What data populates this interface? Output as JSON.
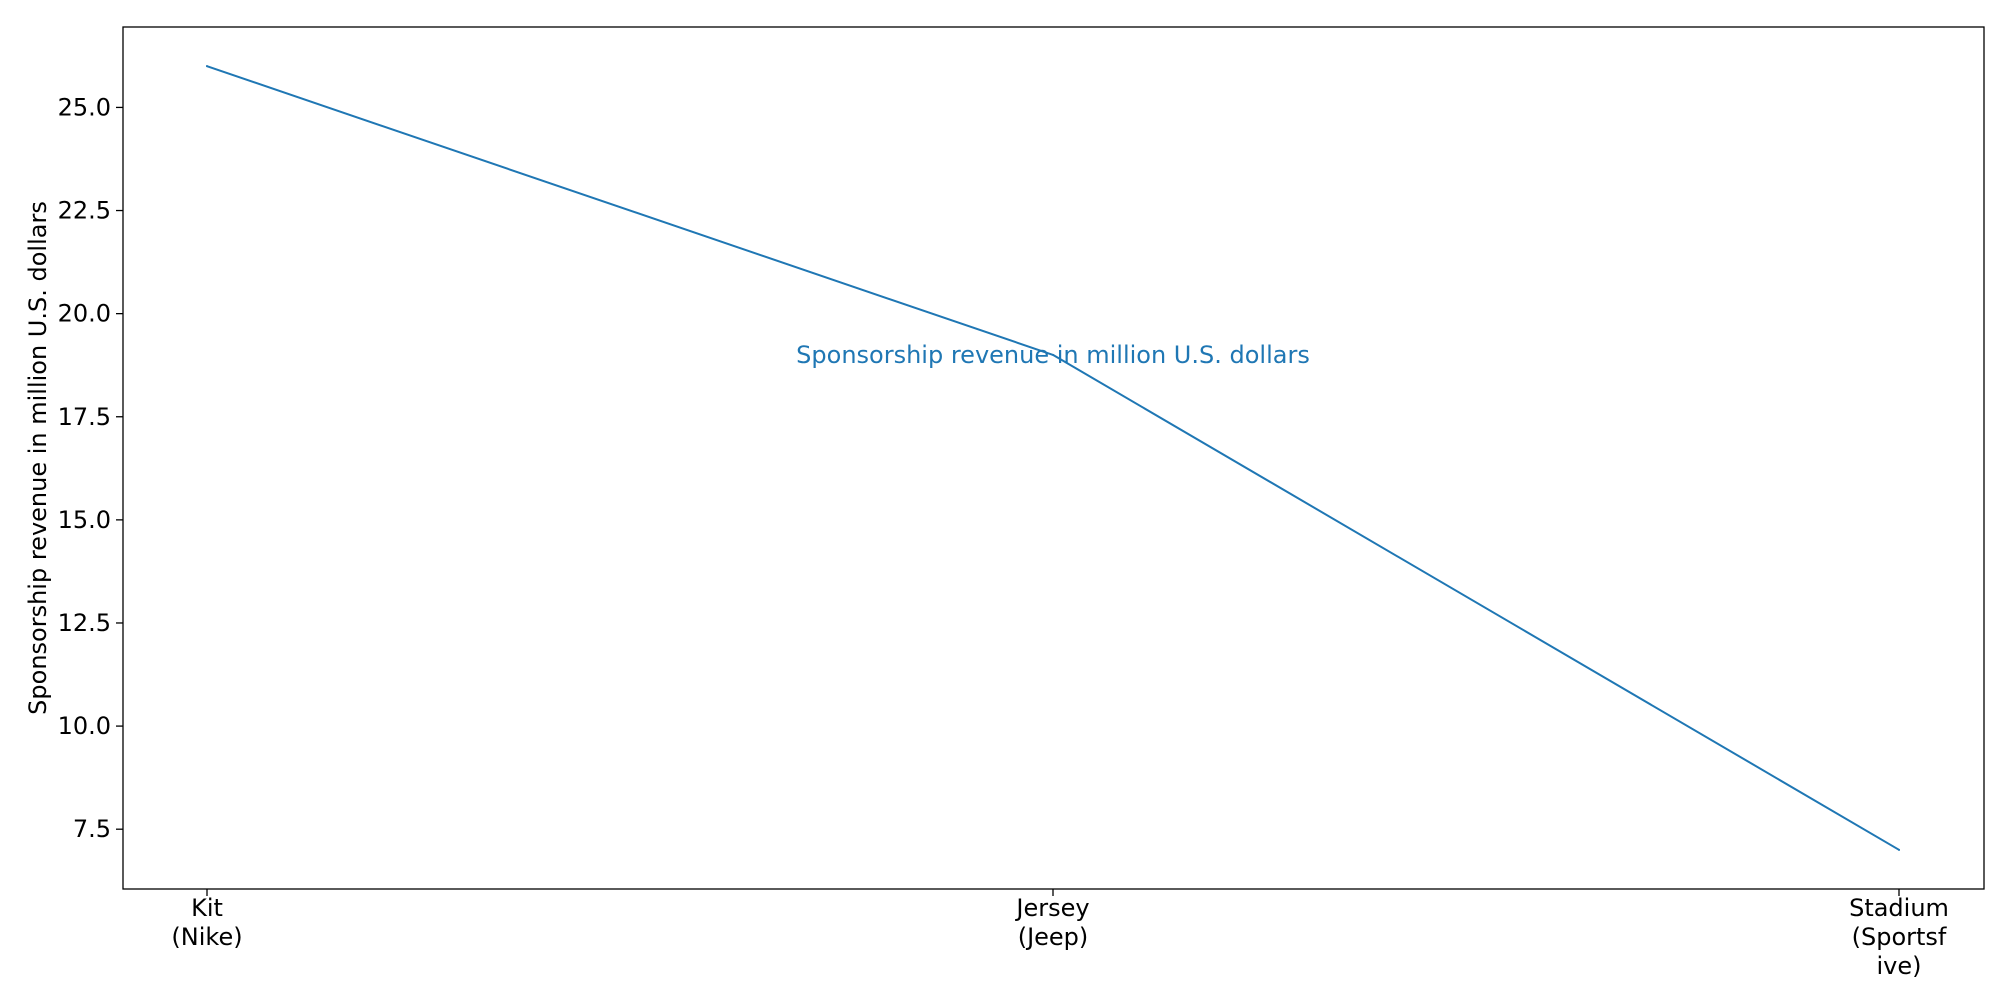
{
  "chart_data": {
    "type": "line",
    "categories": [
      [
        "Kit",
        "(Nike)"
      ],
      [
        "Jersey",
        "(Jeep)"
      ],
      [
        "Stadium",
        "(Sportsf",
        "ive)"
      ]
    ],
    "series": [
      {
        "name": "Sponsorship revenue in million U.S. dollars",
        "values": [
          26,
          19,
          7
        ],
        "color": "#1f77b4"
      }
    ],
    "title": "",
    "xlabel": "",
    "ylabel": "Sponsorship revenue in million U.S. dollars",
    "ylim": [
      6.05,
      26.95
    ],
    "yticks": [
      "7.5",
      "10.0",
      "12.5",
      "15.0",
      "17.5",
      "20.0",
      "22.5",
      "25.0"
    ],
    "annotation": "Sponsorship revenue in million U.S. dollars",
    "grid": false,
    "legend": "none"
  }
}
